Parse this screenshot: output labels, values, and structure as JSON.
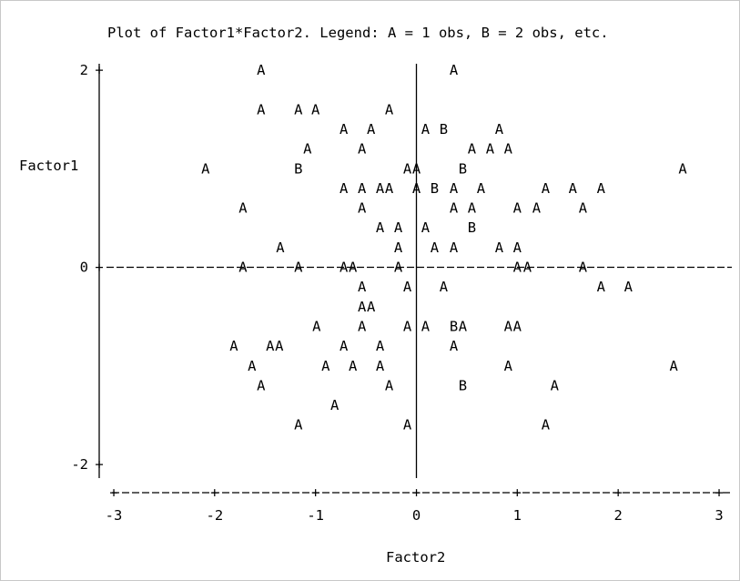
{
  "chart_data": {
    "type": "scatter",
    "title": "Plot of Factor1*Factor2.  Legend: A = 1 obs, B = 2 obs, etc.",
    "xlabel": "Factor2",
    "ylabel": "Factor1",
    "xlim": [
      -3,
      3
    ],
    "ylim": [
      -2,
      2
    ],
    "x_ticks": [
      "-3",
      "-2",
      "-1",
      "0",
      "1",
      "2",
      "3"
    ],
    "y_ticks": [
      "2",
      "0",
      "-2"
    ],
    "points": [
      {
        "x": -1.54,
        "y": 2.0,
        "label": "A"
      },
      {
        "x": 0.37,
        "y": 2.0,
        "label": "A"
      },
      {
        "x": -1.54,
        "y": 1.6,
        "label": "A"
      },
      {
        "x": -1.17,
        "y": 1.6,
        "label": "A"
      },
      {
        "x": -1.0,
        "y": 1.6,
        "label": "A"
      },
      {
        "x": -0.27,
        "y": 1.6,
        "label": "A"
      },
      {
        "x": -0.72,
        "y": 1.4,
        "label": "A"
      },
      {
        "x": -0.45,
        "y": 1.4,
        "label": "A"
      },
      {
        "x": 0.09,
        "y": 1.4,
        "label": "A"
      },
      {
        "x": 0.27,
        "y": 1.4,
        "label": "B"
      },
      {
        "x": 0.82,
        "y": 1.4,
        "label": "A"
      },
      {
        "x": -1.08,
        "y": 1.2,
        "label": "A"
      },
      {
        "x": -0.54,
        "y": 1.2,
        "label": "A"
      },
      {
        "x": 0.55,
        "y": 1.2,
        "label": "A"
      },
      {
        "x": 0.73,
        "y": 1.2,
        "label": "A"
      },
      {
        "x": 0.91,
        "y": 1.2,
        "label": "A"
      },
      {
        "x": -2.09,
        "y": 1.0,
        "label": "A"
      },
      {
        "x": -1.17,
        "y": 1.0,
        "label": "B"
      },
      {
        "x": -0.09,
        "y": 1.0,
        "label": "A"
      },
      {
        "x": 0.0,
        "y": 1.0,
        "label": "A"
      },
      {
        "x": 0.46,
        "y": 1.0,
        "label": "B"
      },
      {
        "x": 2.64,
        "y": 1.0,
        "label": "A"
      },
      {
        "x": -0.72,
        "y": 0.8,
        "label": "A"
      },
      {
        "x": -0.54,
        "y": 0.8,
        "label": "A"
      },
      {
        "x": -0.36,
        "y": 0.8,
        "label": "A"
      },
      {
        "x": -0.27,
        "y": 0.8,
        "label": "A"
      },
      {
        "x": 0.0,
        "y": 0.8,
        "label": "A"
      },
      {
        "x": 0.18,
        "y": 0.8,
        "label": "B"
      },
      {
        "x": 0.37,
        "y": 0.8,
        "label": "A"
      },
      {
        "x": 0.64,
        "y": 0.8,
        "label": "A"
      },
      {
        "x": 1.28,
        "y": 0.8,
        "label": "A"
      },
      {
        "x": 1.55,
        "y": 0.8,
        "label": "A"
      },
      {
        "x": 1.83,
        "y": 0.8,
        "label": "A"
      },
      {
        "x": -1.72,
        "y": 0.6,
        "label": "A"
      },
      {
        "x": -0.54,
        "y": 0.6,
        "label": "A"
      },
      {
        "x": 0.37,
        "y": 0.6,
        "label": "A"
      },
      {
        "x": 0.55,
        "y": 0.6,
        "label": "A"
      },
      {
        "x": 1.0,
        "y": 0.6,
        "label": "A"
      },
      {
        "x": 1.19,
        "y": 0.6,
        "label": "A"
      },
      {
        "x": 1.65,
        "y": 0.6,
        "label": "A"
      },
      {
        "x": -0.36,
        "y": 0.4,
        "label": "A"
      },
      {
        "x": -0.18,
        "y": 0.4,
        "label": "A"
      },
      {
        "x": 0.09,
        "y": 0.4,
        "label": "A"
      },
      {
        "x": 0.55,
        "y": 0.4,
        "label": "B"
      },
      {
        "x": -1.35,
        "y": 0.2,
        "label": "A"
      },
      {
        "x": -0.18,
        "y": 0.2,
        "label": "A"
      },
      {
        "x": 0.18,
        "y": 0.2,
        "label": "A"
      },
      {
        "x": 0.37,
        "y": 0.2,
        "label": "A"
      },
      {
        "x": 0.82,
        "y": 0.2,
        "label": "A"
      },
      {
        "x": 1.0,
        "y": 0.2,
        "label": "A"
      },
      {
        "x": -1.72,
        "y": 0.0,
        "label": "A"
      },
      {
        "x": -1.17,
        "y": 0.0,
        "label": "A"
      },
      {
        "x": -0.72,
        "y": 0.0,
        "label": "A"
      },
      {
        "x": -0.63,
        "y": 0.0,
        "label": "A"
      },
      {
        "x": -0.18,
        "y": 0.0,
        "label": "A"
      },
      {
        "x": 1.0,
        "y": 0.0,
        "label": "A"
      },
      {
        "x": 1.1,
        "y": 0.0,
        "label": "A"
      },
      {
        "x": 1.65,
        "y": 0.0,
        "label": "A"
      },
      {
        "x": -0.54,
        "y": -0.2,
        "label": "A"
      },
      {
        "x": -0.09,
        "y": -0.2,
        "label": "A"
      },
      {
        "x": 0.27,
        "y": -0.2,
        "label": "A"
      },
      {
        "x": 1.83,
        "y": -0.2,
        "label": "A"
      },
      {
        "x": 2.1,
        "y": -0.2,
        "label": "A"
      },
      {
        "x": -0.54,
        "y": -0.4,
        "label": "A"
      },
      {
        "x": -0.45,
        "y": -0.4,
        "label": "A"
      },
      {
        "x": -0.99,
        "y": -0.6,
        "label": "A"
      },
      {
        "x": -0.54,
        "y": -0.6,
        "label": "A"
      },
      {
        "x": -0.09,
        "y": -0.6,
        "label": "A"
      },
      {
        "x": 0.09,
        "y": -0.6,
        "label": "A"
      },
      {
        "x": 0.37,
        "y": -0.6,
        "label": "B"
      },
      {
        "x": 0.46,
        "y": -0.6,
        "label": "A"
      },
      {
        "x": 0.91,
        "y": -0.6,
        "label": "A"
      },
      {
        "x": 1.0,
        "y": -0.6,
        "label": "A"
      },
      {
        "x": -1.81,
        "y": -0.8,
        "label": "A"
      },
      {
        "x": -1.45,
        "y": -0.8,
        "label": "A"
      },
      {
        "x": -1.36,
        "y": -0.8,
        "label": "A"
      },
      {
        "x": -0.72,
        "y": -0.8,
        "label": "A"
      },
      {
        "x": -0.36,
        "y": -0.8,
        "label": "A"
      },
      {
        "x": 0.37,
        "y": -0.8,
        "label": "A"
      },
      {
        "x": -1.63,
        "y": -1.0,
        "label": "A"
      },
      {
        "x": -0.9,
        "y": -1.0,
        "label": "A"
      },
      {
        "x": -0.63,
        "y": -1.0,
        "label": "A"
      },
      {
        "x": -0.36,
        "y": -1.0,
        "label": "A"
      },
      {
        "x": 0.91,
        "y": -1.0,
        "label": "A"
      },
      {
        "x": 2.55,
        "y": -1.0,
        "label": "A"
      },
      {
        "x": -1.54,
        "y": -1.2,
        "label": "A"
      },
      {
        "x": -0.27,
        "y": -1.2,
        "label": "A"
      },
      {
        "x": 0.46,
        "y": -1.2,
        "label": "B"
      },
      {
        "x": 1.37,
        "y": -1.2,
        "label": "A"
      },
      {
        "x": -0.81,
        "y": -1.4,
        "label": "A"
      },
      {
        "x": -1.17,
        "y": -1.6,
        "label": "A"
      },
      {
        "x": -0.09,
        "y": -1.6,
        "label": "A"
      },
      {
        "x": 1.28,
        "y": -1.6,
        "label": "A"
      }
    ]
  }
}
